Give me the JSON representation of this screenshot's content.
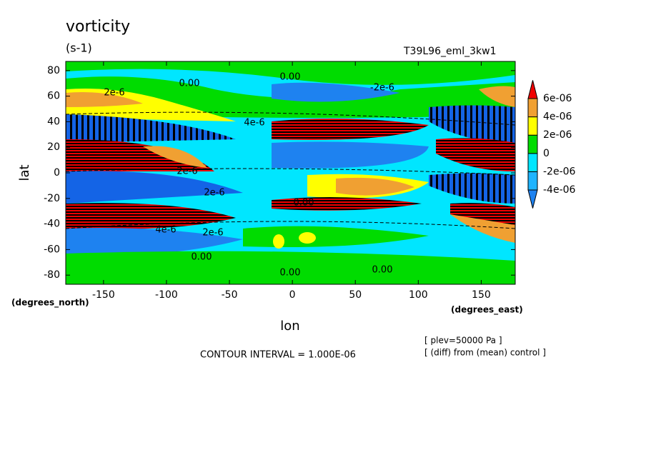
{
  "chart_data": {
    "type": "contour",
    "title": "vorticity",
    "subtitle": "(s-1)",
    "run_label": "T39L96_eml_3kw1",
    "x_label": "lon",
    "y_label": "lat",
    "x_units": "(degrees_east)",
    "y_units": "(degrees_north)",
    "xlim": [
      -180,
      177
    ],
    "ylim": [
      -87.16,
      87.16
    ],
    "xticks": [
      -150,
      -100,
      -50,
      0,
      50,
      100,
      150
    ],
    "yticks": [
      -80,
      -60,
      -40,
      -20,
      0,
      20,
      40,
      60,
      80
    ],
    "colorbar": {
      "levels": [
        {
          "value": -4e-06,
          "label": "-4e-06"
        },
        {
          "value": -2e-06,
          "label": "-2e-06"
        },
        0,
        {
          "value": 2e-06,
          "label": "2e-06"
        },
        {
          "value": 4e-06,
          "label": "4e-06"
        },
        {
          "value": 6e-06,
          "label": "6e-06"
        }
      ],
      "colors": [
        "#1e82f0",
        "#1eb4ff",
        "#00e6ff",
        "#00dc00",
        "#ffff00",
        "#f0a032",
        "#f00000"
      ]
    },
    "contour_labels": [
      "0.00",
      "0.00",
      "0.00",
      "0.00",
      "0.00",
      "0.00",
      "2e-6",
      "4e-6",
      "2e-6",
      "-2e-6",
      "2e-6",
      "4e-6",
      "2e-6"
    ],
    "notes": [
      "CONTOUR INTERVAL = 1.000E-06",
      "[ plev=50000 Pa ]",
      "[ (diff) from (mean) control ]"
    ]
  }
}
